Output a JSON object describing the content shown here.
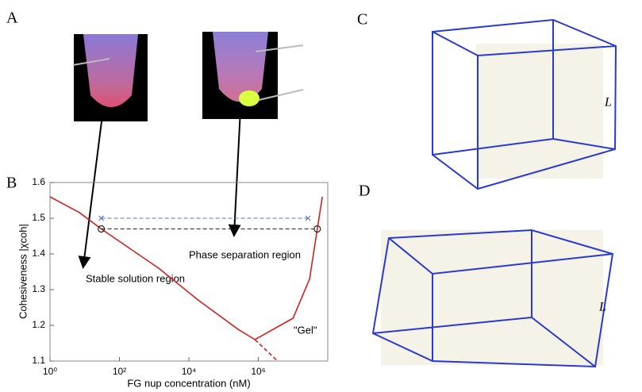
{
  "panels": {
    "a": "A",
    "b": "B",
    "c": "C",
    "d": "D",
    "c_edge": "L",
    "d_edge": "L"
  },
  "chart_data": {
    "type": "line",
    "ylabel": "Cohesiveness |χcoh|",
    "xlabel": "FG nup concentration (nM)",
    "xscale": "log",
    "xlim": [
      1,
      100000000
    ],
    "ylim": [
      1.1,
      1.6
    ],
    "xticks": [
      {
        "value": 1,
        "label": "10⁰"
      },
      {
        "value": 100,
        "label": "10²"
      },
      {
        "value": 10000,
        "label": "10⁴"
      },
      {
        "value": 1000000,
        "label": "10⁶"
      }
    ],
    "yticks": [
      1.1,
      1.2,
      1.3,
      1.4,
      1.5,
      1.6
    ],
    "series": [
      {
        "color": "#d62020",
        "style": "solid",
        "x": [
          1,
          7,
          30,
          1350,
          19000,
          260000,
          800000,
          10000000,
          30000000,
          50000000,
          70000000
        ],
        "values": [
          1.56,
          1.516,
          1.47,
          1.36,
          1.27,
          1.189,
          1.16,
          1.22,
          1.33,
          1.47,
          1.56
        ]
      },
      {
        "color": "#d62020",
        "style": "dashed",
        "x": [
          800000,
          3600000
        ],
        "values": [
          1.16,
          1.1
        ]
      },
      {
        "color": "#5577bb",
        "style": "dashed",
        "marker": "x",
        "x": [
          30,
          27000000
        ],
        "values": [
          1.5,
          1.5
        ]
      },
      {
        "color": "#222222",
        "style": "dashed",
        "marker": "o",
        "x": [
          30,
          50000000
        ],
        "values": [
          1.47,
          1.47
        ]
      }
    ],
    "annotations": [
      "Stable solution region",
      "Phase separation region",
      "\"Gel\""
    ]
  }
}
